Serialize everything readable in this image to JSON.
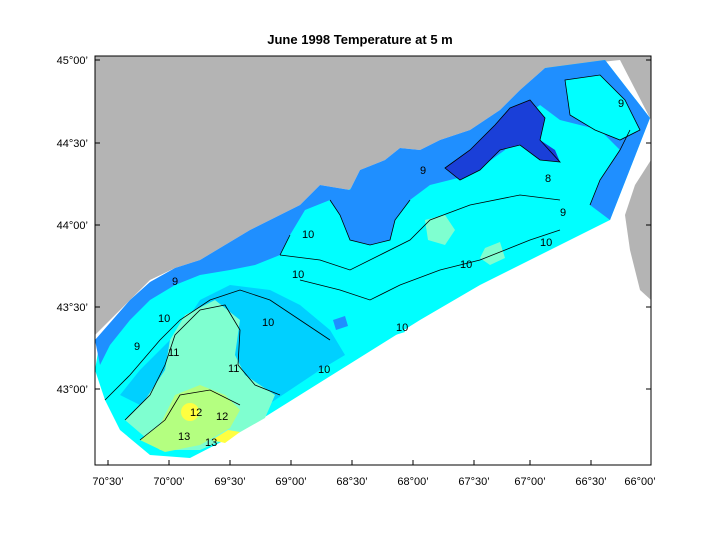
{
  "title": "June 1998  Temperature at 5 m",
  "lat_ticks": [
    "45°00’",
    "44°30’",
    "44°00’",
    "43°30’",
    "43°00’"
  ],
  "lon_ticks": [
    "70°30’",
    "70°00’",
    "69°30’",
    "69°00’",
    "68°30’",
    "68°00’",
    "67°30’",
    "67°00’",
    "66°30’",
    "66°00’"
  ],
  "contour_labels": {
    "l1": "10",
    "l2": "10",
    "l3": "10",
    "l4": "10",
    "l5": "11",
    "l6": "11",
    "l7": "12",
    "l8": "12",
    "l9": "13",
    "l10": "13",
    "l11": "10",
    "l12": "9",
    "l13": "9",
    "l14": "8",
    "l15": "9",
    "l16": "10",
    "l17": "10",
    "l18": "9",
    "l19": "10",
    "l20": "9"
  },
  "colors": {
    "land": "#b4b4b4",
    "t8": "#1a3fd8",
    "t9": "#1f8fff",
    "t95": "#00d0ff",
    "t10": "#00ffff",
    "t11": "#7fffd0",
    "t12": "#b4ff80",
    "t13": "#ffff40"
  }
}
